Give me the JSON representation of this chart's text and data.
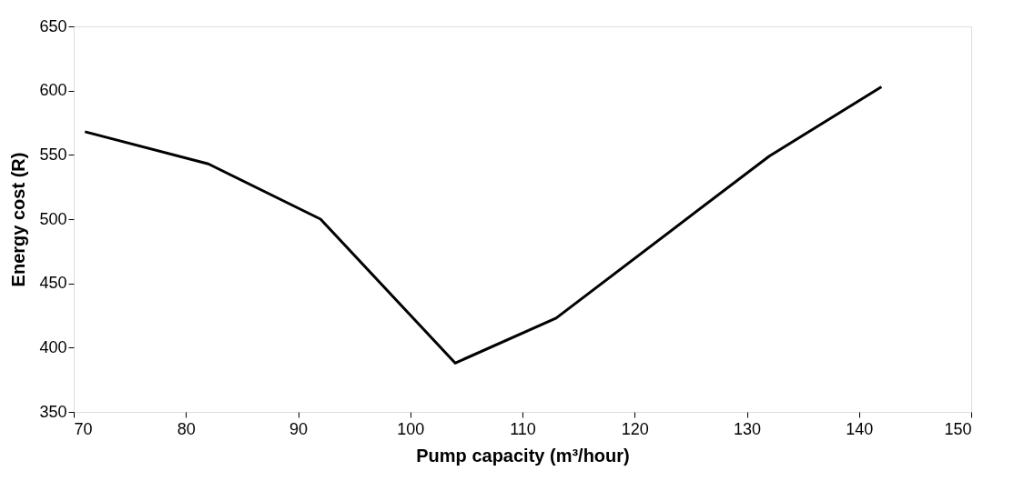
{
  "chart_data": {
    "type": "line",
    "xlabel": "Pump capacity (m³/hour)",
    "ylabel": "Energy cost (R)",
    "x": [
      71,
      82,
      92,
      104,
      113,
      132,
      142
    ],
    "series": [
      {
        "color": "#000000",
        "values": [
          568,
          543,
          500,
          388,
          423,
          549,
          603
        ]
      }
    ],
    "xlim": [
      70,
      150
    ],
    "xticks": [
      70,
      80,
      90,
      100,
      110,
      120,
      130,
      140,
      150
    ],
    "ylim": [
      350,
      650
    ],
    "yticks": [
      350,
      400,
      450,
      500,
      550,
      600,
      650
    ],
    "grid": false,
    "legend": false,
    "marker": "none",
    "line_style": "solid"
  }
}
